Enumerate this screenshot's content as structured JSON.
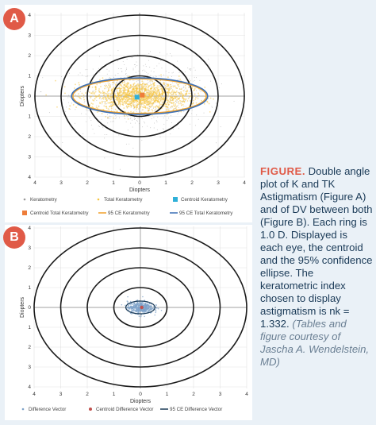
{
  "badges": {
    "a": "A",
    "b": "B"
  },
  "caption": {
    "lead": "FIGURE.",
    "text": " Double angle plot of K and TK Astigmatism (Figure A) and of DV between both (Figure B). Each ring is 1.0 D. Displayed is each eye, the centroid and the 95% confidence ellipse. The keratometric index chosen to display astigmatism is nk = 1.332.",
    "credit": " (Tables and figure courtesy of Jascha A. Wendelstein, MD)"
  },
  "colors": {
    "keratometry": "#9b9b9b",
    "total_keratometry": "#f5c542",
    "centroid_keratometry": "#2fb0d8",
    "centroid_total_keratometry": "#ee7d3a",
    "ce95_keratometry": "#f0a02a",
    "ce95_total_keratometry": "#3b6fb5",
    "difference_vector": "#7fa3c9",
    "centroid_difference_vector": "#c0504d",
    "badge": "#e05a47"
  },
  "chart_data": [
    {
      "type": "scatter",
      "panel": "A",
      "xlabel": "Diopters",
      "ylabel": "Diopters",
      "xlim": [
        -4,
        4
      ],
      "ylim": [
        -4,
        4
      ],
      "x_ticks": [
        "4",
        "3",
        "2",
        "1",
        "0",
        "1",
        "2",
        "3",
        "4"
      ],
      "y_ticks": [
        "4",
        "3",
        "2",
        "1",
        "0",
        "1",
        "2",
        "3",
        "4"
      ],
      "rings": [
        1,
        2,
        3,
        4
      ],
      "grid": true,
      "legend_position": "bottom",
      "series": [
        {
          "name": "Keratometry",
          "marker": "dot",
          "description": "scattered individual eyes, spread approx x ±4, y ±3"
        },
        {
          "name": "Total Keratometry",
          "marker": "dot",
          "description": "dense cloud, approx x ±2.5, y ±1"
        },
        {
          "name": "Centroid Keratometry",
          "marker": "square",
          "x": -0.1,
          "y": -0.05
        },
        {
          "name": "Centroid Total Keratometry",
          "marker": "square",
          "x": 0.1,
          "y": 0.05
        },
        {
          "name": "95 CE Keratometry",
          "type": "ellipse",
          "cx": 0,
          "cy": 0,
          "rx": 2.55,
          "ry": 0.85
        },
        {
          "name": "95 CE Total Keratometry",
          "type": "ellipse",
          "cx": 0,
          "cy": 0,
          "rx": 2.6,
          "ry": 0.9
        }
      ]
    },
    {
      "type": "scatter",
      "panel": "B",
      "xlabel": "Diopters",
      "ylabel": "Diopters",
      "xlim": [
        -4,
        4
      ],
      "ylim": [
        -4,
        4
      ],
      "x_ticks": [
        "4",
        "3",
        "2",
        "1",
        "0",
        "1",
        "2",
        "3",
        "4"
      ],
      "y_ticks": [
        "4",
        "3",
        "2",
        "1",
        "0",
        "1",
        "2",
        "3",
        "4"
      ],
      "rings": [
        1,
        2,
        3,
        4
      ],
      "grid": true,
      "legend_position": "bottom",
      "series": [
        {
          "name": "Difference Vector",
          "marker": "dot",
          "description": "tight cluster approx x ±0.8, y ±0.5"
        },
        {
          "name": "Centroid Difference Vector",
          "marker": "dot",
          "x": 0.05,
          "y": 0.0
        },
        {
          "name": "95 CE Difference Vector",
          "type": "ellipse",
          "cx": 0,
          "cy": 0,
          "rx": 0.55,
          "ry": 0.32
        }
      ]
    }
  ]
}
